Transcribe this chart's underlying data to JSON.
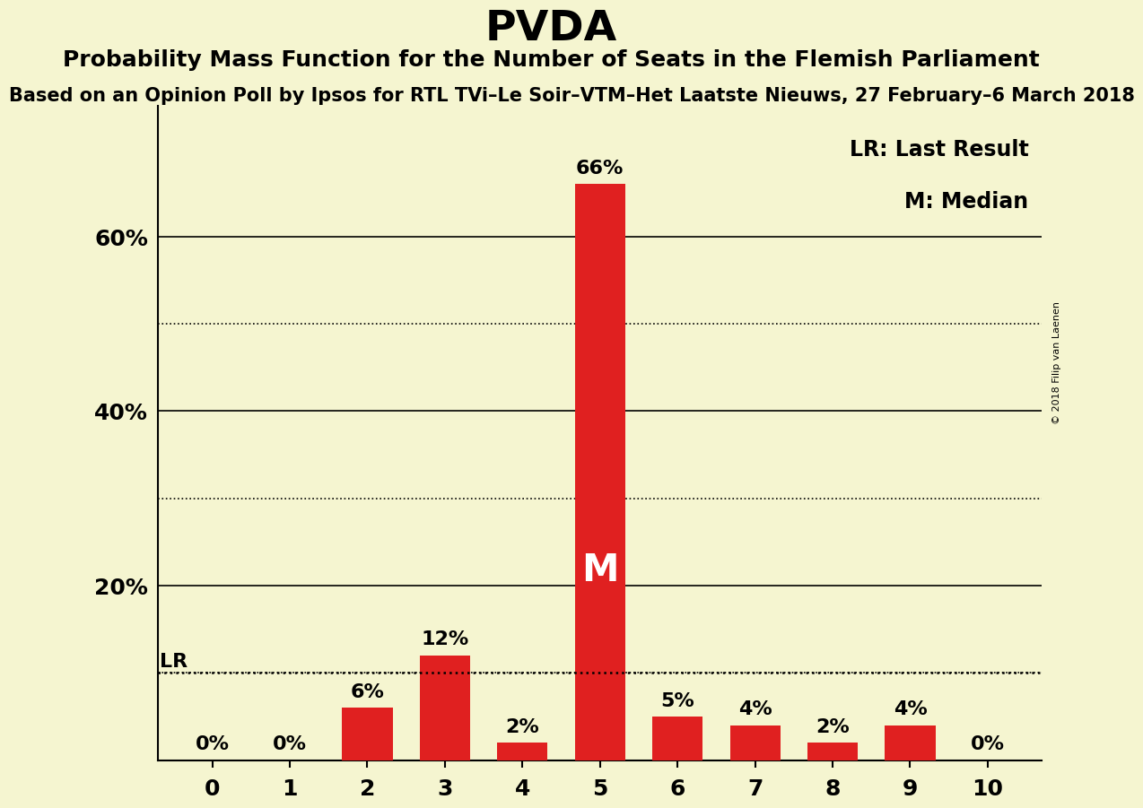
{
  "title": "PVDA",
  "subtitle": "Probability Mass Function for the Number of Seats in the Flemish Parliament",
  "sub_subtitle": "Based on an Opinion Poll by Ipsos for RTL TVi–Le Soir–VTM–Het Laatste Nieuws, 27 February–6 March 2018",
  "copyright": "© 2018 Filip van Laenen",
  "categories": [
    0,
    1,
    2,
    3,
    4,
    5,
    6,
    7,
    8,
    9,
    10
  ],
  "values": [
    0,
    0,
    6,
    12,
    2,
    66,
    5,
    4,
    2,
    4,
    0
  ],
  "bar_color": "#e02020",
  "background_color": "#f5f5d0",
  "ylim": [
    0,
    75
  ],
  "lr_value": 10,
  "lr_label": "LR",
  "median_seat": 5,
  "median_label": "M",
  "legend_lr": "LR: Last Result",
  "legend_m": "M: Median",
  "solid_gridlines": [
    20,
    40,
    60
  ],
  "dotted_gridlines": [
    10,
    30,
    50
  ],
  "bar_width": 0.65,
  "title_fontsize": 34,
  "subtitle_fontsize": 18,
  "sub_subtitle_fontsize": 15,
  "value_label_fontsize": 16,
  "tick_fontsize": 18,
  "legend_fontsize": 17,
  "median_fontsize": 30,
  "lr_fontsize": 16
}
